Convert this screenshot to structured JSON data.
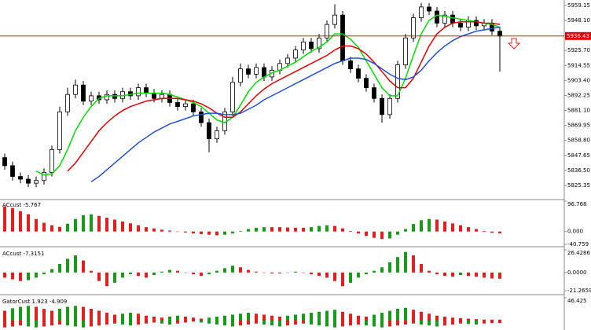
{
  "chart_data": [
    {
      "type": "candlestick",
      "open": [
        5846,
        5840,
        5832,
        5830,
        5827,
        5829,
        5835,
        5852,
        5880,
        5893,
        5900,
        5888,
        5892,
        5889,
        5893,
        5890,
        5895,
        5892,
        5898,
        5894,
        5890,
        5893,
        5887,
        5884,
        5886,
        5880,
        5872,
        5860,
        5866,
        5880,
        5902,
        5912,
        5908,
        5913,
        5906,
        5911,
        5916,
        5920,
        5926,
        5932,
        5927,
        5935,
        5945,
        5952,
        5918,
        5912,
        5905,
        5898,
        5890,
        5878,
        5890,
        5915,
        5935,
        5950,
        5958,
        5955,
        5946,
        5952,
        5946,
        5943,
        5948,
        5944,
        5946,
        5940
      ],
      "high": [
        5849,
        5843,
        5835,
        5833,
        5832,
        5838,
        5855,
        5884,
        5898,
        5904,
        5903,
        5895,
        5895,
        5896,
        5896,
        5898,
        5898,
        5901,
        5901,
        5897,
        5896,
        5896,
        5890,
        5889,
        5889,
        5883,
        5875,
        5869,
        5883,
        5906,
        5916,
        5915,
        5916,
        5916,
        5914,
        5919,
        5923,
        5929,
        5935,
        5935,
        5938,
        5948,
        5960,
        5955,
        5921,
        5915,
        5908,
        5901,
        5893,
        5893,
        5918,
        5938,
        5953,
        5961,
        5961,
        5958,
        5955,
        5955,
        5949,
        5951,
        5951,
        5949,
        5949,
        5943
      ],
      "low": [
        5837,
        5829,
        5827,
        5824,
        5824,
        5826,
        5832,
        5849,
        5877,
        5890,
        5885,
        5885,
        5886,
        5886,
        5887,
        5887,
        5889,
        5889,
        5891,
        5887,
        5887,
        5884,
        5881,
        5881,
        5877,
        5869,
        5850,
        5857,
        5863,
        5877,
        5899,
        5905,
        5905,
        5903,
        5903,
        5908,
        5913,
        5917,
        5923,
        5924,
        5924,
        5932,
        5942,
        5915,
        5909,
        5902,
        5895,
        5887,
        5872,
        5875,
        5887,
        5912,
        5932,
        5947,
        5952,
        5943,
        5943,
        5943,
        5940,
        5940,
        5941,
        5941,
        5937,
        5910
      ],
      "close": [
        5840,
        5832,
        5830,
        5827,
        5829,
        5835,
        5852,
        5880,
        5893,
        5900,
        5888,
        5892,
        5889,
        5893,
        5890,
        5895,
        5892,
        5898,
        5894,
        5890,
        5893,
        5887,
        5884,
        5886,
        5880,
        5872,
        5860,
        5866,
        5880,
        5902,
        5912,
        5908,
        5913,
        5906,
        5911,
        5916,
        5920,
        5926,
        5932,
        5927,
        5935,
        5945,
        5952,
        5918,
        5912,
        5905,
        5898,
        5890,
        5878,
        5890,
        5915,
        5935,
        5950,
        5958,
        5955,
        5946,
        5952,
        5946,
        5943,
        5948,
        5944,
        5946,
        5940,
        5936.43
      ],
      "moving_averages": [
        {
          "color": "#00dd00",
          "values": [
            null,
            null,
            null,
            null,
            5836,
            5833,
            5834,
            5840,
            5852,
            5866,
            5876,
            5884,
            5890,
            5892,
            5892,
            5892,
            5893,
            5894,
            5894,
            5894,
            5894,
            5893,
            5891,
            5889,
            5887,
            5884,
            5879,
            5874,
            5872,
            5876,
            5885,
            5895,
            5902,
            5906,
            5909,
            5911,
            5914,
            5917,
            5921,
            5925,
            5928,
            5932,
            5938,
            5938,
            5934,
            5928,
            5918,
            5908,
            5898,
            5892,
            5892,
            5905,
            5922,
            5938,
            5948,
            5952,
            5951,
            5950,
            5949,
            5948,
            5947,
            5946,
            5945,
            5943
          ]
        },
        {
          "color": "#e00000",
          "values": [
            null,
            null,
            null,
            null,
            null,
            null,
            null,
            null,
            5836,
            5842,
            5850,
            5858,
            5866,
            5872,
            5877,
            5881,
            5884,
            5886,
            5888,
            5889,
            5890,
            5890,
            5890,
            5889,
            5888,
            5886,
            5883,
            5879,
            5876,
            5876,
            5880,
            5886,
            5892,
            5897,
            5901,
            5904,
            5907,
            5910,
            5913,
            5916,
            5919,
            5922,
            5926,
            5929,
            5929,
            5927,
            5923,
            5917,
            5910,
            5903,
            5898,
            5898,
            5905,
            5917,
            5929,
            5938,
            5943,
            5946,
            5947,
            5947,
            5947,
            5946,
            5946,
            5945
          ]
        },
        {
          "color": "#1f50d0",
          "values": [
            null,
            null,
            null,
            null,
            null,
            null,
            null,
            null,
            null,
            null,
            null,
            5828,
            5832,
            5837,
            5842,
            5847,
            5852,
            5857,
            5861,
            5865,
            5868,
            5871,
            5873,
            5875,
            5877,
            5878,
            5879,
            5879,
            5878,
            5878,
            5879,
            5882,
            5885,
            5889,
            5892,
            5895,
            5898,
            5901,
            5904,
            5907,
            5910,
            5913,
            5916,
            5918,
            5920,
            5920,
            5919,
            5916,
            5912,
            5908,
            5905,
            5904,
            5906,
            5911,
            5918,
            5924,
            5929,
            5933,
            5936,
            5938,
            5940,
            5941,
            5942,
            5943
          ]
        }
      ],
      "last_price": 5936.43,
      "ylim": [
        5815.4,
        5963.2
      ],
      "yticks": [
        5959.15,
        {
          "value": 5948.1,
          "label": "5948.10"
        },
        {
          "value": 5925.7,
          "label": "5925.70"
        },
        5914.55,
        {
          "value": 5903.4,
          "label": "5903.40"
        },
        5892.25,
        {
          "value": 5881.1,
          "label": "5881.10"
        },
        5869.95,
        {
          "value": 5858.8,
          "label": "5858.80"
        },
        5847.65,
        {
          "value": 5836.5,
          "label": "5836.50"
        },
        5825.35
      ]
    },
    {
      "type": "histogram",
      "title": "ACcust -5.767",
      "up_color": "#1a9a1a",
      "down_color": "#e02020",
      "values": [
        80,
        75,
        65,
        55,
        40,
        28,
        20,
        15,
        25,
        40,
        52,
        55,
        50,
        44,
        38,
        32,
        26,
        20,
        14,
        10,
        6,
        3,
        0,
        -3,
        -6,
        -8,
        -10,
        -12,
        -10,
        -6,
        2,
        8,
        12,
        14,
        14,
        14,
        13,
        12,
        12,
        14,
        18,
        20,
        18,
        10,
        2,
        -6,
        -14,
        -20,
        -24,
        -22,
        -10,
        8,
        24,
        36,
        40,
        38,
        32,
        26,
        20,
        14,
        8,
        2,
        -4,
        -5.767
      ],
      "ylim": [
        -40.759,
        96.768
      ],
      "yticks": [
        96.768,
        {
          "value": 0,
          "label": "0.000"
        },
        -40.759
      ]
    },
    {
      "type": "histogram",
      "title": "ACcust -7.3151",
      "up_color": "#1a9a1a",
      "down_color": "#e02020",
      "values": [
        -6,
        -8,
        -10,
        -9,
        -6,
        -2,
        4,
        10,
        16,
        20,
        14,
        2,
        -10,
        -16,
        -12,
        -6,
        -2,
        -4,
        -6,
        -3,
        1,
        3,
        2,
        0,
        -2,
        -4,
        -2,
        2,
        5,
        8,
        6,
        3,
        1,
        0,
        -1,
        -1,
        0,
        1,
        0,
        -2,
        -4,
        -6,
        -10,
        -16,
        -12,
        -6,
        -2,
        2,
        6,
        12,
        18,
        24,
        20,
        10,
        2,
        -2,
        -4,
        -5,
        -3,
        -4,
        -5,
        -6,
        -7,
        -7.3151
      ],
      "ylim": [
        -21.2659,
        26.4286
      ],
      "yticks": [
        26.4286,
        {
          "value": 0,
          "label": "0.0000"
        },
        -21.2659
      ]
    },
    {
      "type": "gator",
      "title": "GatorCust 1.923 -4.909",
      "up_color": "#1a9a1a",
      "down_color": "#e02020",
      "upper": [
        20,
        25,
        28,
        30,
        28,
        24,
        20,
        24,
        28,
        30,
        28,
        24,
        20,
        16,
        12,
        14,
        16,
        14,
        10,
        8,
        6,
        8,
        10,
        8,
        6,
        4,
        6,
        8,
        10,
        12,
        14,
        16,
        14,
        12,
        10,
        8,
        10,
        12,
        14,
        16,
        18,
        20,
        22,
        18,
        14,
        10,
        8,
        12,
        16,
        20,
        24,
        26,
        22,
        18,
        14,
        10,
        8,
        6,
        5,
        4,
        3,
        2,
        2,
        1.923
      ],
      "lower": [
        -14,
        -12,
        -10,
        -12,
        -14,
        -12,
        -10,
        -8,
        -10,
        -12,
        -14,
        -12,
        -10,
        -8,
        -6,
        -8,
        -10,
        -8,
        -6,
        -4,
        -6,
        -8,
        -6,
        -4,
        -2,
        -4,
        -6,
        -8,
        -10,
        -12,
        -10,
        -8,
        -6,
        -8,
        -10,
        -12,
        -10,
        -8,
        -6,
        -8,
        -10,
        -12,
        -14,
        -12,
        -10,
        -8,
        -10,
        -12,
        -14,
        -12,
        -10,
        -8,
        -6,
        -8,
        -10,
        -12,
        -10,
        -8,
        -6,
        -7,
        -8,
        -6,
        -5,
        -4.909
      ],
      "ylim": [
        -19.2,
        46.425
      ],
      "yticks": [
        46.425
      ]
    }
  ]
}
